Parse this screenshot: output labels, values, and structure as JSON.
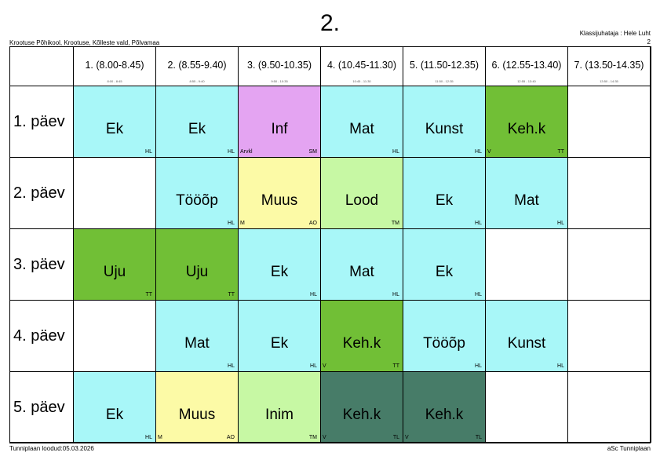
{
  "class_title": "2.",
  "school": "Krootuse Põhikool, Krootuse, Kõlleste vald, Põlvamaa",
  "teacher": "Klassijuhataja : Hele Luht",
  "page_number": "2",
  "footer_left": "Tunniplaan loodud:05.03.2026",
  "footer_right": "aSc Tunniplaan",
  "periods": [
    {
      "label": "1. (8.00-8.45)",
      "sub": "8:00 - 8:45"
    },
    {
      "label": "2. (8.55-9.40)",
      "sub": "8:55 - 9:40"
    },
    {
      "label": "3. (9.50-10.35)",
      "sub": "9:50 - 10:35"
    },
    {
      "label": "4. (10.45-11.30)",
      "sub": "10:45 - 11:30"
    },
    {
      "label": "5. (11.50-12.35)",
      "sub": "11:50 - 12:35"
    },
    {
      "label": "6. (12.55-13.40)",
      "sub": "12:55 - 13:40"
    },
    {
      "label": "7. (13.50-14.35)",
      "sub": "13:50 - 14:35"
    }
  ],
  "days": [
    {
      "label": "1. päev",
      "lessons": [
        {
          "subject": "Ek",
          "teacher": "HL",
          "room": "",
          "color": "#a8f7f8"
        },
        {
          "subject": "Ek",
          "teacher": "HL",
          "room": "",
          "color": "#a8f7f8"
        },
        {
          "subject": "Inf",
          "teacher": "SM",
          "room": "Arvkl",
          "color": "#e4a4f2"
        },
        {
          "subject": "Mat",
          "teacher": "HL",
          "room": "",
          "color": "#a8f7f8"
        },
        {
          "subject": "Kunst",
          "teacher": "HL",
          "room": "",
          "color": "#a8f7f8"
        },
        {
          "subject": "Keh.k",
          "teacher": "TT",
          "room": "V",
          "color": "#71bf36"
        },
        null
      ]
    },
    {
      "label": "2. päev",
      "lessons": [
        null,
        {
          "subject": "Tööõp",
          "teacher": "HL",
          "room": "",
          "color": "#a8f7f8"
        },
        {
          "subject": "Muus",
          "teacher": "AO",
          "room": "M",
          "color": "#fcfaa6"
        },
        {
          "subject": "Lood",
          "teacher": "TM",
          "room": "",
          "color": "#c7f8a4"
        },
        {
          "subject": "Ek",
          "teacher": "HL",
          "room": "",
          "color": "#a8f7f8"
        },
        {
          "subject": "Mat",
          "teacher": "HL",
          "room": "",
          "color": "#a8f7f8"
        },
        null
      ]
    },
    {
      "label": "3. päev",
      "lessons": [
        {
          "subject": "Uju",
          "teacher": "TT",
          "room": "",
          "color": "#71bf36"
        },
        {
          "subject": "Uju",
          "teacher": "TT",
          "room": "",
          "color": "#71bf36"
        },
        {
          "subject": "Ek",
          "teacher": "HL",
          "room": "",
          "color": "#a8f7f8"
        },
        {
          "subject": "Mat",
          "teacher": "HL",
          "room": "",
          "color": "#a8f7f8"
        },
        {
          "subject": "Ek",
          "teacher": "HL",
          "room": "",
          "color": "#a8f7f8"
        },
        null,
        null
      ]
    },
    {
      "label": "4. päev",
      "lessons": [
        null,
        {
          "subject": "Mat",
          "teacher": "HL",
          "room": "",
          "color": "#a8f7f8"
        },
        {
          "subject": "Ek",
          "teacher": "HL",
          "room": "",
          "color": "#a8f7f8"
        },
        {
          "subject": "Keh.k",
          "teacher": "TT",
          "room": "V",
          "color": "#71bf36"
        },
        {
          "subject": "Tööõp",
          "teacher": "HL",
          "room": "",
          "color": "#a8f7f8"
        },
        {
          "subject": "Kunst",
          "teacher": "HL",
          "room": "",
          "color": "#a8f7f8"
        },
        null
      ]
    },
    {
      "label": "5. päev",
      "lessons": [
        {
          "subject": "Ek",
          "teacher": "HL",
          "room": "",
          "color": "#a8f7f8"
        },
        {
          "subject": "Muus",
          "teacher": "AO",
          "room": "M",
          "color": "#fcfaa6"
        },
        {
          "subject": "Inim",
          "teacher": "TM",
          "room": "",
          "color": "#c7f8a4"
        },
        {
          "subject": "Keh.k",
          "teacher": "TL",
          "room": "V",
          "color": "#477c68"
        },
        {
          "subject": "Keh.k",
          "teacher": "TL",
          "room": "V",
          "color": "#477c68"
        },
        null,
        null
      ]
    }
  ]
}
